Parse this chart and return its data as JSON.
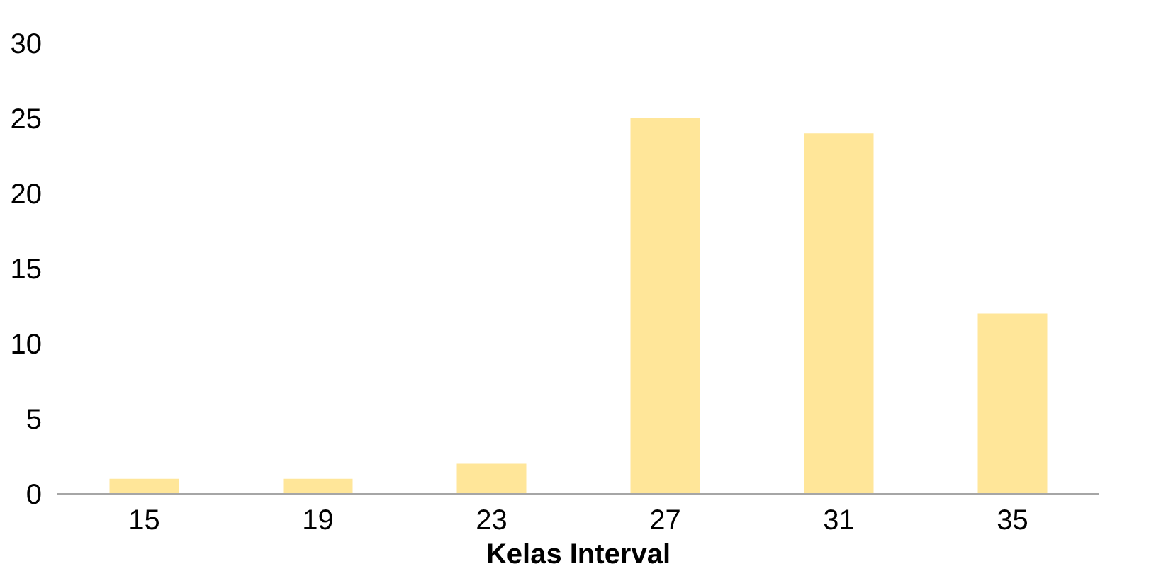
{
  "chart_data": {
    "type": "bar",
    "xlabel": "Kelas Interval",
    "categories": [
      "15",
      "19",
      "23",
      "27",
      "31",
      "35"
    ],
    "values": [
      1,
      1,
      2,
      25,
      24,
      12
    ],
    "color": "#ffe699",
    "ylim": [
      0,
      30
    ],
    "yticks": [
      0,
      5,
      10,
      15,
      20,
      25,
      30
    ],
    "grid": false
  }
}
